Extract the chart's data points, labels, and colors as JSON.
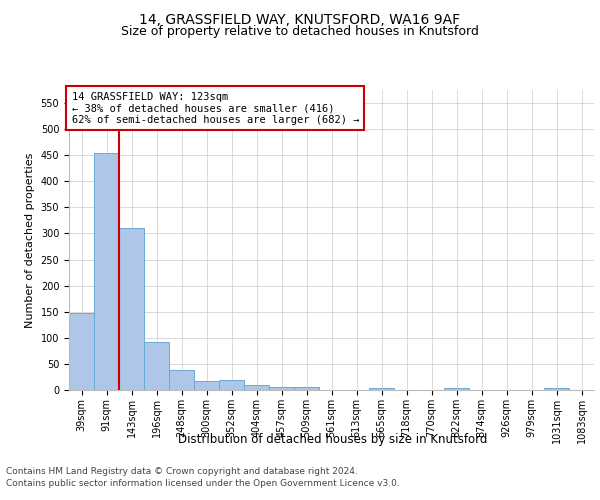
{
  "title1": "14, GRASSFIELD WAY, KNUTSFORD, WA16 9AF",
  "title2": "Size of property relative to detached houses in Knutsford",
  "xlabel": "Distribution of detached houses by size in Knutsford",
  "ylabel": "Number of detached properties",
  "categories": [
    "39sqm",
    "91sqm",
    "143sqm",
    "196sqm",
    "248sqm",
    "300sqm",
    "352sqm",
    "404sqm",
    "457sqm",
    "509sqm",
    "561sqm",
    "613sqm",
    "665sqm",
    "718sqm",
    "770sqm",
    "822sqm",
    "874sqm",
    "926sqm",
    "979sqm",
    "1031sqm",
    "1083sqm"
  ],
  "values": [
    148,
    455,
    310,
    92,
    38,
    18,
    20,
    10,
    6,
    5,
    0,
    0,
    3,
    0,
    0,
    3,
    0,
    0,
    0,
    3,
    0
  ],
  "bar_color": "#aec6e8",
  "bar_edge_color": "#6aaad4",
  "vline_color": "#cc0000",
  "vline_x_index": 1.5,
  "annotation_line1": "14 GRASSFIELD WAY: 123sqm",
  "annotation_line2": "← 38% of detached houses are smaller (416)",
  "annotation_line3": "62% of semi-detached houses are larger (682) →",
  "annotation_box_color": "#ffffff",
  "annotation_box_edge": "#cc0000",
  "ylim": [
    0,
    575
  ],
  "yticks": [
    0,
    50,
    100,
    150,
    200,
    250,
    300,
    350,
    400,
    450,
    500,
    550
  ],
  "footer1": "Contains HM Land Registry data © Crown copyright and database right 2024.",
  "footer2": "Contains public sector information licensed under the Open Government Licence v3.0.",
  "bg_color": "#ffffff",
  "grid_color": "#cccccc",
  "title1_fontsize": 10,
  "title2_fontsize": 9,
  "tick_fontsize": 7,
  "ylabel_fontsize": 8,
  "xlabel_fontsize": 8.5,
  "annotation_fontsize": 7.5,
  "footer_fontsize": 6.5
}
